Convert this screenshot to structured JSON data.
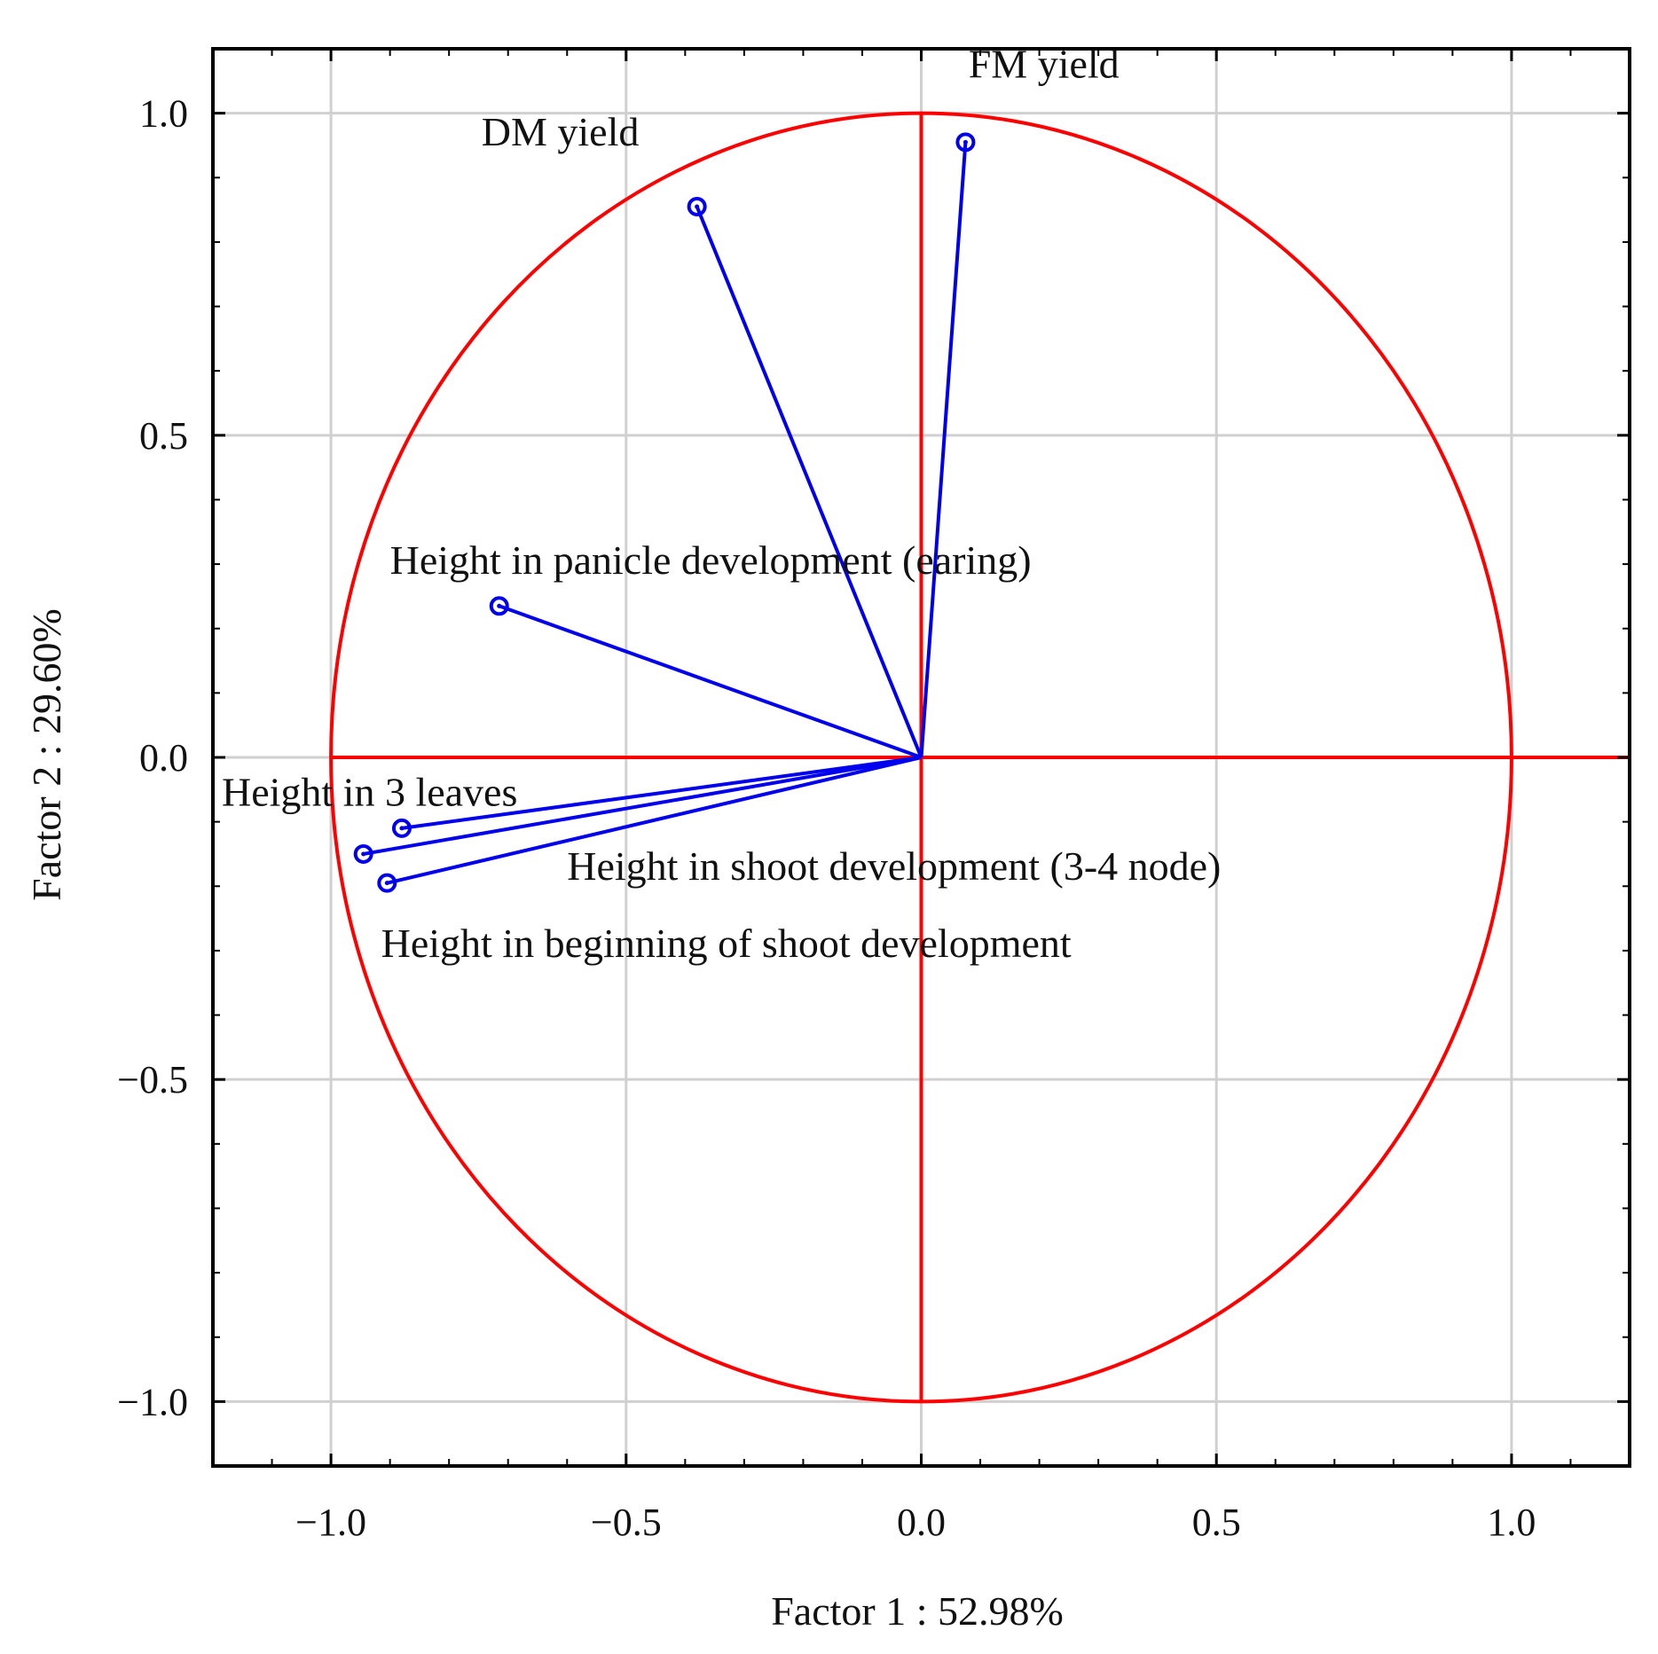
{
  "chart_data": {
    "type": "scatter",
    "subtype": "pca-correlation-circle",
    "xlabel": "Factor 1 : 52.98%",
    "ylabel": "Factor 2 : 29.60%",
    "xlim": [
      -1.2,
      1.2
    ],
    "ylim": [
      -1.1,
      1.1
    ],
    "xticks": [
      -1.0,
      -0.5,
      0.0,
      0.5,
      1.0
    ],
    "xtick_labels": [
      "−1.0",
      "−0.5",
      "0.0",
      "0.5",
      "1.0"
    ],
    "yticks": [
      1.0,
      0.5,
      0.0,
      -0.5,
      -1.0
    ],
    "ytick_labels": [
      "1.0",
      "0.5",
      "0.0",
      "−0.5",
      "−1.0"
    ],
    "grid": true,
    "unit_circle": true,
    "circle_color": "#ff0000",
    "vector_color": "#0000ee",
    "variables": [
      {
        "name": "FM yield",
        "x": 0.075,
        "y": 0.955
      },
      {
        "name": "DM yield",
        "x": -0.38,
        "y": 0.855
      },
      {
        "name": "Height in panicle development (earing)",
        "x": -0.715,
        "y": 0.235
      },
      {
        "name": "Height in 3 leaves",
        "x": -0.88,
        "y": -0.11
      },
      {
        "name": "Height in shoot development (3-4 node)",
        "x": -0.945,
        "y": -0.15
      },
      {
        "name": "Height in beginning of shoot development",
        "x": -0.905,
        "y": -0.195
      }
    ]
  }
}
